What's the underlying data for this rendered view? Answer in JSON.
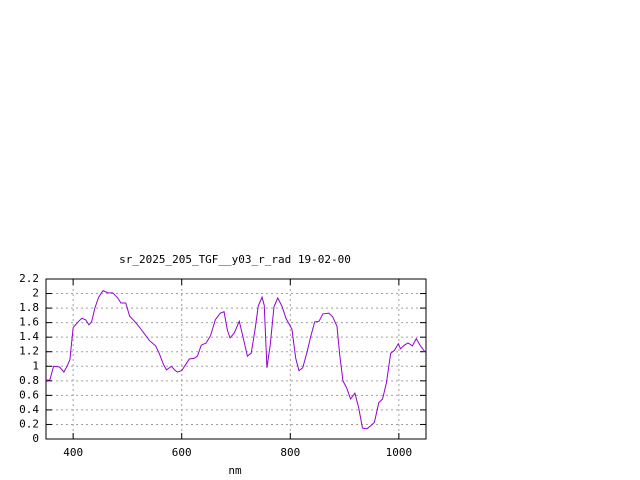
{
  "chart_data": {
    "type": "line",
    "title": "sr_2025_205_TGF__y03_r_rad 19-02-00",
    "x_label": "nm",
    "xlim": [
      350,
      1050
    ],
    "xticks": [
      400,
      600,
      800,
      1000
    ],
    "ylim": [
      0,
      2.2
    ],
    "yticks": [
      0,
      0.2,
      0.4,
      0.6,
      0.8,
      1,
      1.2,
      1.4,
      1.6,
      1.8,
      2,
      2.2
    ],
    "grid": true,
    "x": [
      350,
      357,
      364,
      375,
      383,
      390,
      394,
      400,
      409,
      416,
      423,
      429,
      434,
      440,
      447,
      455,
      464,
      473,
      482,
      488,
      497,
      504,
      513,
      522,
      532,
      541,
      552,
      559,
      566,
      572,
      581,
      587,
      592,
      600,
      607,
      614,
      623,
      629,
      636,
      645,
      653,
      662,
      671,
      678,
      684,
      689,
      697,
      706,
      713,
      721,
      728,
      735,
      741,
      748,
      752,
      757,
      763,
      770,
      777,
      785,
      792,
      803,
      810,
      816,
      823,
      831,
      838,
      845,
      853,
      860,
      871,
      878,
      886,
      891,
      897,
      904,
      911,
      919,
      926,
      933,
      941,
      948,
      955,
      963,
      970,
      977,
      985,
      992,
      999,
      1003,
      1010,
      1017,
      1025,
      1032,
      1039,
      1047
    ],
    "series": [
      {
        "name": null,
        "color": "#9400d3",
        "values": [
          0.81,
          0.81,
          1.0,
          0.99,
          0.92,
          1.02,
          1.09,
          1.53,
          1.61,
          1.66,
          1.64,
          1.57,
          1.61,
          1.8,
          1.95,
          2.04,
          2.01,
          2.01,
          1.94,
          1.87,
          1.87,
          1.69,
          1.62,
          1.54,
          1.44,
          1.35,
          1.28,
          1.17,
          1.03,
          0.95,
          1.0,
          0.95,
          0.92,
          0.94,
          1.02,
          1.1,
          1.11,
          1.14,
          1.29,
          1.32,
          1.42,
          1.64,
          1.73,
          1.75,
          1.5,
          1.39,
          1.46,
          1.62,
          1.4,
          1.14,
          1.18,
          1.5,
          1.83,
          1.95,
          1.84,
          0.98,
          1.29,
          1.82,
          1.94,
          1.82,
          1.66,
          1.51,
          1.11,
          0.94,
          0.98,
          1.2,
          1.42,
          1.61,
          1.62,
          1.72,
          1.73,
          1.68,
          1.55,
          1.16,
          0.8,
          0.7,
          0.55,
          0.63,
          0.43,
          0.15,
          0.14,
          0.18,
          0.23,
          0.5,
          0.55,
          0.77,
          1.18,
          1.22,
          1.31,
          1.24,
          1.29,
          1.32,
          1.28,
          1.38,
          1.29,
          1.21
        ]
      }
    ]
  }
}
